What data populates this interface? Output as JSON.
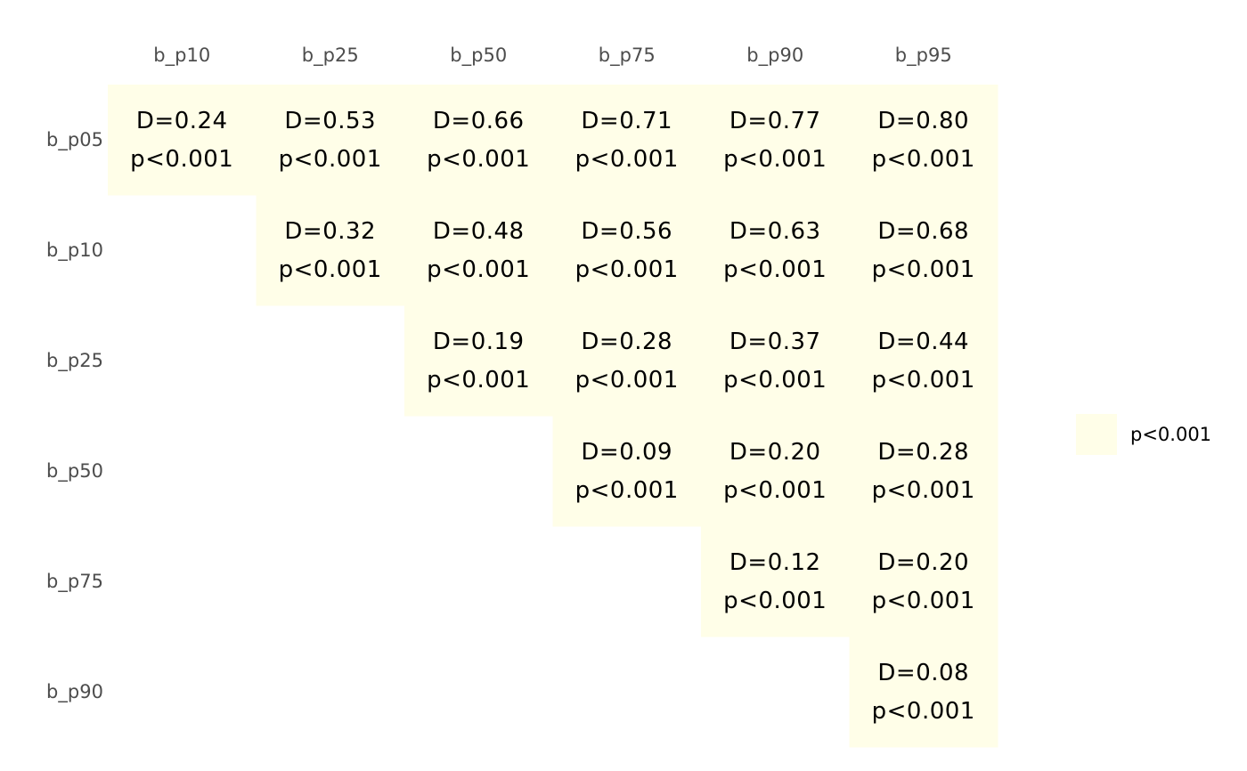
{
  "chart_data": {
    "type": "heatmap",
    "title": "",
    "xlabel": "",
    "ylabel": "",
    "columns": [
      "b_p10",
      "b_p25",
      "b_p50",
      "b_p75",
      "b_p90",
      "b_p95"
    ],
    "rows": [
      "b_p05",
      "b_p10",
      "b_p25",
      "b_p50",
      "b_p75",
      "b_p90"
    ],
    "cells": [
      {
        "row": "b_p05",
        "col": "b_p10",
        "d": "D=0.24",
        "p": "p<0.001",
        "category": "p<0.001"
      },
      {
        "row": "b_p05",
        "col": "b_p25",
        "d": "D=0.53",
        "p": "p<0.001",
        "category": "p<0.001"
      },
      {
        "row": "b_p05",
        "col": "b_p50",
        "d": "D=0.66",
        "p": "p<0.001",
        "category": "p<0.001"
      },
      {
        "row": "b_p05",
        "col": "b_p75",
        "d": "D=0.71",
        "p": "p<0.001",
        "category": "p<0.001"
      },
      {
        "row": "b_p05",
        "col": "b_p90",
        "d": "D=0.77",
        "p": "p<0.001",
        "category": "p<0.001"
      },
      {
        "row": "b_p05",
        "col": "b_p95",
        "d": "D=0.80",
        "p": "p<0.001",
        "category": "p<0.001"
      },
      {
        "row": "b_p10",
        "col": "b_p25",
        "d": "D=0.32",
        "p": "p<0.001",
        "category": "p<0.001"
      },
      {
        "row": "b_p10",
        "col": "b_p50",
        "d": "D=0.48",
        "p": "p<0.001",
        "category": "p<0.001"
      },
      {
        "row": "b_p10",
        "col": "b_p75",
        "d": "D=0.56",
        "p": "p<0.001",
        "category": "p<0.001"
      },
      {
        "row": "b_p10",
        "col": "b_p90",
        "d": "D=0.63",
        "p": "p<0.001",
        "category": "p<0.001"
      },
      {
        "row": "b_p10",
        "col": "b_p95",
        "d": "D=0.68",
        "p": "p<0.001",
        "category": "p<0.001"
      },
      {
        "row": "b_p25",
        "col": "b_p50",
        "d": "D=0.19",
        "p": "p<0.001",
        "category": "p<0.001"
      },
      {
        "row": "b_p25",
        "col": "b_p75",
        "d": "D=0.28",
        "p": "p<0.001",
        "category": "p<0.001"
      },
      {
        "row": "b_p25",
        "col": "b_p90",
        "d": "D=0.37",
        "p": "p<0.001",
        "category": "p<0.001"
      },
      {
        "row": "b_p25",
        "col": "b_p95",
        "d": "D=0.44",
        "p": "p<0.001",
        "category": "p<0.001"
      },
      {
        "row": "b_p50",
        "col": "b_p75",
        "d": "D=0.09",
        "p": "p<0.001",
        "category": "p<0.001"
      },
      {
        "row": "b_p50",
        "col": "b_p90",
        "d": "D=0.20",
        "p": "p<0.001",
        "category": "p<0.001"
      },
      {
        "row": "b_p50",
        "col": "b_p95",
        "d": "D=0.28",
        "p": "p<0.001",
        "category": "p<0.001"
      },
      {
        "row": "b_p75",
        "col": "b_p90",
        "d": "D=0.12",
        "p": "p<0.001",
        "category": "p<0.001"
      },
      {
        "row": "b_p75",
        "col": "b_p95",
        "d": "D=0.20",
        "p": "p<0.001",
        "category": "p<0.001"
      },
      {
        "row": "b_p90",
        "col": "b_p95",
        "d": "D=0.08",
        "p": "p<0.001",
        "category": "p<0.001"
      }
    ],
    "legend": {
      "position": "right",
      "entries": [
        {
          "label": "p<0.001",
          "color": "#fffee8"
        }
      ]
    },
    "colors": {
      "cell_fill": "#fffee8",
      "cell_text": "#000000",
      "axis_text": "#4d4d4d",
      "background": "#ffffff"
    }
  }
}
